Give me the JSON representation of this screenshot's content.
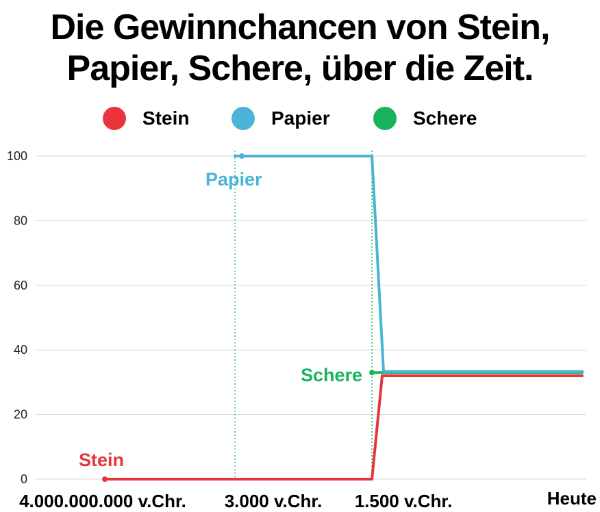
{
  "chart_data": {
    "type": "line",
    "title": "Die Gewinnchancen von Stein, Papier, Schere, über die Zeit.",
    "x_categories": [
      "4.000.000.000 v.Chr.",
      "3.000 v.Chr.",
      "1.500 v.Chr.",
      "Heute"
    ],
    "ylim": [
      0,
      100
    ],
    "yticks": [
      0,
      20,
      40,
      60,
      80,
      100
    ],
    "grid": true,
    "legend_position": "top",
    "legend": [
      {
        "name": "Stein",
        "color": "#e8343b"
      },
      {
        "name": "Papier",
        "color": "#4ab3d6"
      },
      {
        "name": "Schere",
        "color": "#19b35d"
      }
    ],
    "series": [
      {
        "name": "Stein",
        "color": "#e8343b",
        "points": [
          {
            "x": "4.000.000.000 v.Chr.",
            "y": 0
          },
          {
            "x": "1.500 v.Chr.",
            "y": 0
          },
          {
            "x": "1.500 v.Chr.",
            "y": 32
          },
          {
            "x": "Heute",
            "y": 32
          }
        ]
      },
      {
        "name": "Papier",
        "color": "#4ab3d6",
        "points": [
          {
            "x": "3.000 v.Chr.",
            "y": 100
          },
          {
            "x": "1.500 v.Chr.",
            "y": 100
          },
          {
            "x": "1.500 v.Chr.",
            "y": 33
          },
          {
            "x": "Heute",
            "y": 33
          }
        ]
      },
      {
        "name": "Schere",
        "color": "#19b35d",
        "points": [
          {
            "x": "1.500 v.Chr.",
            "y": 33
          },
          {
            "x": "Heute",
            "y": 33
          }
        ]
      }
    ],
    "annotations": [
      {
        "text": "Stein",
        "color": "#e8343b"
      },
      {
        "text": "Papier",
        "color": "#4ab3d6"
      },
      {
        "text": "Schere",
        "color": "#19b35d"
      }
    ],
    "vertical_markers": [
      {
        "x": "3.000 v.Chr.",
        "color": "#4ab3d6"
      },
      {
        "x": "1.500 v.Chr.",
        "color": "#19b35d"
      }
    ]
  }
}
